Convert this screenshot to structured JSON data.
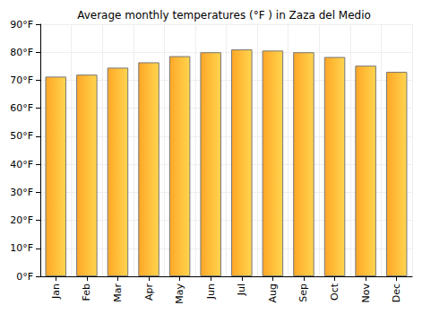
{
  "chart_data": {
    "type": "bar",
    "title": "Average monthly temperatures (°F ) in Zaza del Medio",
    "categories": [
      "Jan",
      "Feb",
      "Mar",
      "Apr",
      "May",
      "Jun",
      "Jul",
      "Aug",
      "Sep",
      "Oct",
      "Nov",
      "Dec"
    ],
    "values": [
      71.3,
      72,
      74.5,
      76.4,
      78.6,
      80,
      81,
      80.6,
      80,
      78.3,
      75.2,
      73
    ],
    "color": "#ffa726",
    "ylim": [
      0,
      90
    ],
    "yticks": [
      {
        "value": 0,
        "label": "0°F"
      },
      {
        "value": 10,
        "label": "10°F"
      },
      {
        "value": 20,
        "label": "20°F"
      },
      {
        "value": 30,
        "label": "30°F"
      },
      {
        "value": 40,
        "label": "40°F"
      },
      {
        "value": 50,
        "label": "50°F"
      },
      {
        "value": 60,
        "label": "60°F"
      },
      {
        "value": 70,
        "label": "70°F"
      },
      {
        "value": 80,
        "label": "80°F"
      },
      {
        "value": 90,
        "label": "90°F"
      }
    ],
    "grid": true
  }
}
